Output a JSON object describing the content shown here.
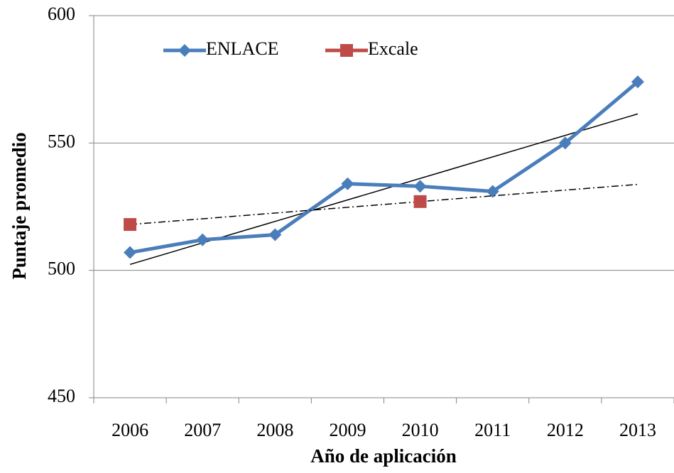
{
  "chart_data": {
    "type": "line",
    "x_label": "Año de aplicación",
    "y_label": "Puntaje promedio",
    "categories": [
      "2006",
      "2007",
      "2008",
      "2009",
      "2010",
      "2011",
      "2012",
      "2013"
    ],
    "series": [
      {
        "name": "ENLACE",
        "color": "#4a7ebb",
        "marker": "diamond",
        "trendline": "solid",
        "values": [
          507,
          512,
          514,
          534,
          533,
          531,
          550,
          574
        ]
      },
      {
        "name": "Excale",
        "color": "#be4b48",
        "marker": "square",
        "trendline": "dashdot",
        "values": [
          518,
          null,
          null,
          null,
          527,
          null,
          null,
          null
        ]
      }
    ],
    "ylim": [
      450,
      600
    ],
    "yticks": [
      450,
      500,
      550,
      600
    ],
    "grid": true,
    "legend": "top"
  }
}
